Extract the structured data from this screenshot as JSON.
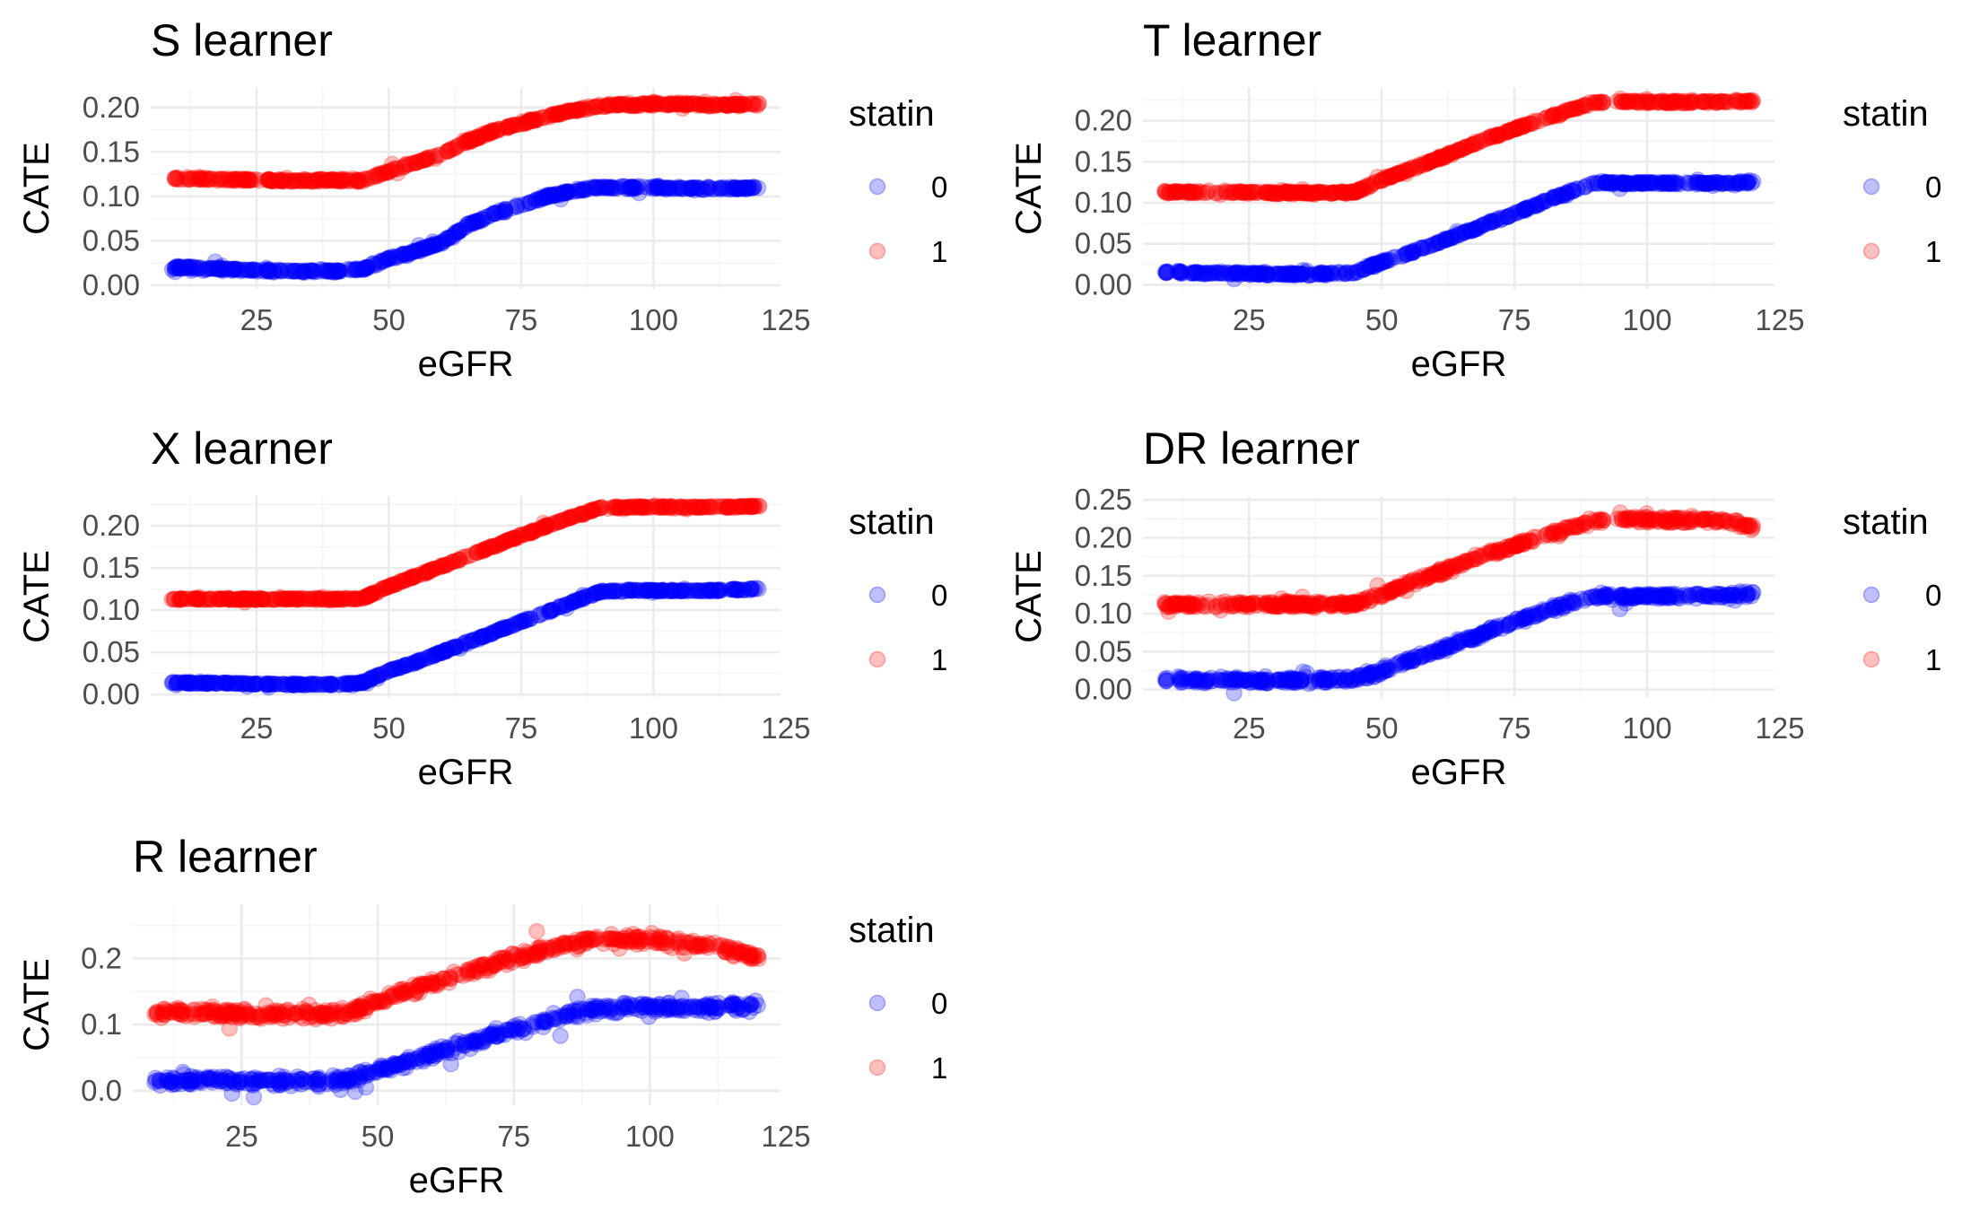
{
  "chart_data": [
    {
      "type": "scatter",
      "title": "S learner",
      "xlabel": "eGFR",
      "ylabel": "CATE",
      "xlim": [
        5,
        124
      ],
      "ylim": [
        -0.004,
        0.222
      ],
      "xticks": [
        25,
        50,
        75,
        100,
        125
      ],
      "yticks": [
        0.0,
        0.05,
        0.1,
        0.15,
        0.2
      ],
      "ytick_labels": [
        "0.00",
        "0.05",
        "0.10",
        "0.15",
        "0.20"
      ],
      "legend": {
        "title": "statin",
        "placement": "right",
        "entries": [
          "0",
          "1"
        ]
      },
      "grid": true,
      "series": [
        {
          "name": "0",
          "color": "#0000ff",
          "x": [
            10,
            20,
            30,
            40,
            45,
            50,
            55,
            60,
            65,
            70,
            75,
            80,
            85,
            90,
            95,
            100,
            105,
            110,
            115,
            120
          ],
          "values": [
            0.02,
            0.018,
            0.016,
            0.016,
            0.018,
            0.03,
            0.038,
            0.048,
            0.068,
            0.08,
            0.09,
            0.1,
            0.106,
            0.11,
            0.11,
            0.11,
            0.109,
            0.109,
            0.109,
            0.11
          ]
        },
        {
          "name": "1",
          "color": "#ff0000",
          "x": [
            10,
            20,
            30,
            40,
            45,
            50,
            55,
            60,
            65,
            70,
            75,
            80,
            85,
            90,
            95,
            100,
            105,
            110,
            115,
            120
          ],
          "values": [
            0.12,
            0.119,
            0.118,
            0.118,
            0.118,
            0.128,
            0.138,
            0.148,
            0.162,
            0.174,
            0.182,
            0.19,
            0.197,
            0.202,
            0.203,
            0.204,
            0.204,
            0.203,
            0.203,
            0.204
          ]
        }
      ]
    },
    {
      "type": "scatter",
      "title": "T learner",
      "xlabel": "eGFR",
      "ylabel": "CATE",
      "xlim": [
        5,
        124
      ],
      "ylim": [
        -0.005,
        0.24
      ],
      "xticks": [
        25,
        50,
        75,
        100,
        125
      ],
      "yticks": [
        0.0,
        0.05,
        0.1,
        0.15,
        0.2
      ],
      "ytick_labels": [
        "0.00",
        "0.05",
        "0.10",
        "0.15",
        "0.20"
      ],
      "legend": {
        "title": "statin",
        "placement": "right",
        "entries": [
          "0",
          "1"
        ]
      },
      "grid": true,
      "series": [
        {
          "name": "0",
          "color": "#0000ff",
          "x": [
            10,
            20,
            30,
            40,
            45,
            50,
            55,
            60,
            65,
            70,
            75,
            80,
            85,
            90,
            95,
            100,
            105,
            110,
            115,
            120
          ],
          "values": [
            0.015,
            0.014,
            0.013,
            0.013,
            0.015,
            0.028,
            0.038,
            0.05,
            0.062,
            0.075,
            0.087,
            0.1,
            0.112,
            0.124,
            0.124,
            0.124,
            0.124,
            0.124,
            0.124,
            0.125
          ]
        },
        {
          "name": "1",
          "color": "#ff0000",
          "x": [
            10,
            20,
            30,
            40,
            45,
            50,
            55,
            60,
            65,
            70,
            75,
            80,
            85,
            90,
            95,
            100,
            105,
            110,
            115,
            120
          ],
          "values": [
            0.113,
            0.113,
            0.112,
            0.112,
            0.113,
            0.128,
            0.14,
            0.152,
            0.165,
            0.178,
            0.19,
            0.201,
            0.212,
            0.222,
            0.223,
            0.223,
            0.223,
            0.223,
            0.223,
            0.224
          ]
        }
      ]
    },
    {
      "type": "scatter",
      "title": "X learner",
      "xlabel": "eGFR",
      "ylabel": "CATE",
      "xlim": [
        5,
        124
      ],
      "ylim": [
        -0.003,
        0.235
      ],
      "xticks": [
        25,
        50,
        75,
        100,
        125
      ],
      "yticks": [
        0.0,
        0.05,
        0.1,
        0.15,
        0.2
      ],
      "ytick_labels": [
        "0.00",
        "0.05",
        "0.10",
        "0.15",
        "0.20"
      ],
      "legend": {
        "title": "statin",
        "placement": "right",
        "entries": [
          "0",
          "1"
        ]
      },
      "grid": true,
      "series": [
        {
          "name": "0",
          "color": "#0000ff",
          "x": [
            10,
            20,
            30,
            40,
            45,
            50,
            55,
            60,
            65,
            70,
            75,
            80,
            85,
            90,
            95,
            100,
            105,
            110,
            115,
            120
          ],
          "values": [
            0.014,
            0.013,
            0.012,
            0.012,
            0.014,
            0.028,
            0.038,
            0.05,
            0.062,
            0.074,
            0.086,
            0.098,
            0.11,
            0.122,
            0.123,
            0.123,
            0.123,
            0.123,
            0.124,
            0.125
          ]
        },
        {
          "name": "1",
          "color": "#ff0000",
          "x": [
            10,
            20,
            30,
            40,
            45,
            50,
            55,
            60,
            65,
            70,
            75,
            80,
            85,
            90,
            95,
            100,
            105,
            110,
            115,
            120
          ],
          "values": [
            0.113,
            0.113,
            0.113,
            0.113,
            0.114,
            0.128,
            0.14,
            0.152,
            0.164,
            0.176,
            0.188,
            0.2,
            0.211,
            0.221,
            0.222,
            0.222,
            0.222,
            0.222,
            0.222,
            0.223
          ]
        }
      ]
    },
    {
      "type": "scatter",
      "title": "DR learner",
      "xlabel": "eGFR",
      "ylabel": "CATE",
      "xlim": [
        5,
        124
      ],
      "ylim": [
        -0.01,
        0.255
      ],
      "xticks": [
        25,
        50,
        75,
        100,
        125
      ],
      "yticks": [
        0.0,
        0.05,
        0.1,
        0.15,
        0.2,
        0.25
      ],
      "ytick_labels": [
        "0.00",
        "0.05",
        "0.10",
        "0.15",
        "0.20",
        "0.25"
      ],
      "legend": {
        "title": "statin",
        "placement": "right",
        "entries": [
          "0",
          "1"
        ]
      },
      "grid": true,
      "series": [
        {
          "name": "0",
          "color": "#0000ff",
          "x": [
            10,
            20,
            30,
            40,
            45,
            50,
            55,
            60,
            65,
            70,
            75,
            80,
            85,
            90,
            95,
            100,
            105,
            110,
            115,
            120
          ],
          "values": [
            0.012,
            0.012,
            0.012,
            0.012,
            0.014,
            0.025,
            0.038,
            0.05,
            0.063,
            0.077,
            0.09,
            0.102,
            0.113,
            0.122,
            0.123,
            0.123,
            0.123,
            0.124,
            0.124,
            0.126
          ]
        },
        {
          "name": "1",
          "color": "#ff0000",
          "x": [
            10,
            20,
            30,
            40,
            45,
            50,
            55,
            60,
            65,
            70,
            75,
            80,
            85,
            90,
            95,
            100,
            105,
            110,
            115,
            120
          ],
          "values": [
            0.112,
            0.112,
            0.112,
            0.112,
            0.113,
            0.125,
            0.14,
            0.152,
            0.165,
            0.178,
            0.19,
            0.201,
            0.212,
            0.222,
            0.224,
            0.224,
            0.224,
            0.224,
            0.222,
            0.214
          ]
        }
      ]
    },
    {
      "type": "scatter",
      "title": "R learner",
      "xlabel": "eGFR",
      "ylabel": "CATE",
      "xlim": [
        5,
        124
      ],
      "ylim": [
        -0.022,
        0.282
      ],
      "xticks": [
        25,
        50,
        75,
        100,
        125
      ],
      "yticks": [
        0.0,
        0.1,
        0.2
      ],
      "ytick_labels": [
        "0.0",
        "0.1",
        "0.2"
      ],
      "legend": {
        "title": "statin",
        "placement": "right",
        "entries": [
          "0",
          "1"
        ]
      },
      "grid": true,
      "series": [
        {
          "name": "0",
          "color": "#0000ff",
          "x": [
            10,
            20,
            30,
            40,
            45,
            50,
            55,
            60,
            65,
            70,
            75,
            80,
            85,
            90,
            95,
            100,
            105,
            110,
            115,
            120
          ],
          "values": [
            0.015,
            0.015,
            0.014,
            0.015,
            0.018,
            0.03,
            0.042,
            0.055,
            0.068,
            0.08,
            0.092,
            0.104,
            0.115,
            0.124,
            0.125,
            0.126,
            0.126,
            0.126,
            0.127,
            0.128
          ]
        },
        {
          "name": "1",
          "color": "#ff0000",
          "x": [
            10,
            20,
            30,
            40,
            45,
            50,
            55,
            60,
            65,
            70,
            75,
            80,
            85,
            90,
            95,
            100,
            105,
            110,
            115,
            120
          ],
          "values": [
            0.118,
            0.118,
            0.115,
            0.116,
            0.12,
            0.135,
            0.15,
            0.163,
            0.176,
            0.188,
            0.2,
            0.212,
            0.222,
            0.228,
            0.23,
            0.228,
            0.225,
            0.22,
            0.212,
            0.2
          ]
        }
      ]
    }
  ]
}
